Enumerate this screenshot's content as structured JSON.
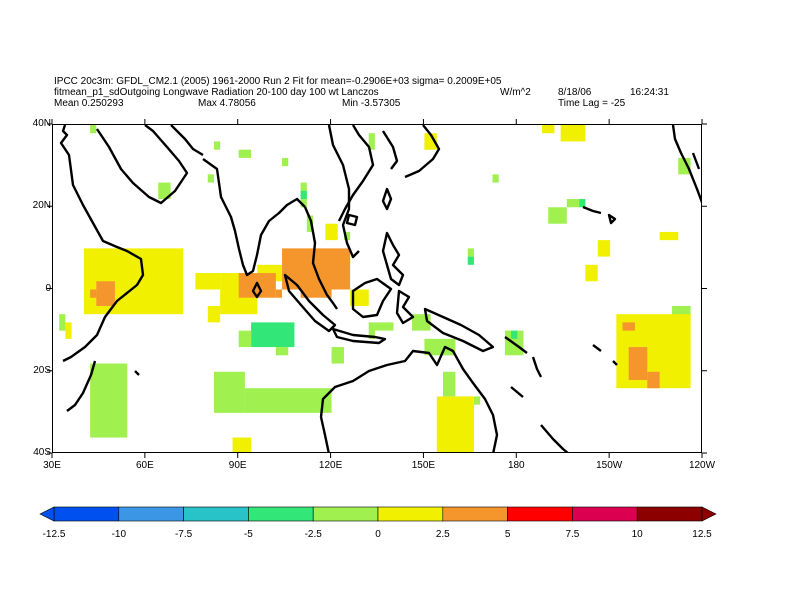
{
  "header": {
    "line1": "IPCC 20c3m: GFDL_CM2.1 (2005) 1961-2000 Run 2 Fit for mean=-0.2906E+03 sigma= 0.2009E+05",
    "line2": "fitmean_p1_sdOutgoing Longwave Radiation 20-100 day 100 wt Lanczos",
    "units": "W/m^2",
    "date": "8/18/06",
    "time": "16:24:31",
    "mean": "Mean 0.250293",
    "max": "Max 4.78056",
    "min": "Min -3.57305",
    "lag": "Time Lag = -25"
  },
  "map": {
    "lon_range": [
      30,
      240
    ],
    "lat_range": [
      -40,
      40
    ],
    "x_ticks": [
      "30E",
      "60E",
      "90E",
      "120E",
      "150E",
      "180",
      "150W",
      "120W"
    ],
    "y_ticks": [
      "40N",
      "20N",
      "0",
      "20S",
      "40S"
    ]
  },
  "colorbar": {
    "colors": [
      "#0050f0",
      "#3c96e6",
      "#28c3c8",
      "#32e678",
      "#a0f050",
      "#f0f000",
      "#f5962d",
      "#ff0000",
      "#dc0050",
      "#8c0000"
    ],
    "labels": [
      "-12.5",
      "-10",
      "-7.5",
      "-5",
      "-2.5",
      "0",
      "2.5",
      "5",
      "7.5",
      "10",
      "12.5"
    ]
  },
  "chart_data": {
    "type": "heatmap",
    "title": "fitmean_p1_sdOutgoing Longwave Radiation 20-100 day 100 wt Lanczos",
    "units": "W/m^2",
    "value_range": [
      -12.5,
      12.5
    ],
    "note": "cell value classes: -5 = [-5,-2.5), -2 = [-2.5,0), 0 = [0,2.5), 2 = [2.5,5)",
    "cells": [
      {
        "lon": [
          42,
          44
        ],
        "lat": [
          38,
          40
        ],
        "class": -2
      },
      {
        "lon": [
          80,
          82
        ],
        "lat": [
          26,
          28
        ],
        "class": -2
      },
      {
        "lon": [
          82,
          84
        ],
        "lat": [
          34,
          36
        ],
        "class": -2
      },
      {
        "lon": [
          90,
          94
        ],
        "lat": [
          32,
          34
        ],
        "class": -2
      },
      {
        "lon": [
          64,
          68
        ],
        "lat": [
          22,
          26
        ],
        "class": -2
      },
      {
        "lon": [
          104,
          106
        ],
        "lat": [
          30,
          32
        ],
        "class": -2
      },
      {
        "lon": [
          110,
          112
        ],
        "lat": [
          20,
          26
        ],
        "class": -2
      },
      {
        "lon": [
          110,
          112
        ],
        "lat": [
          22,
          24
        ],
        "class": -5
      },
      {
        "lon": [
          112,
          114
        ],
        "lat": [
          14,
          18
        ],
        "class": -2
      },
      {
        "lon": [
          132,
          134
        ],
        "lat": [
          34,
          38
        ],
        "class": -2
      },
      {
        "lon": [
          150,
          152
        ],
        "lat": [
          34,
          36
        ],
        "class": -2
      },
      {
        "lon": [
          172,
          174
        ],
        "lat": [
          26,
          28
        ],
        "class": -2
      },
      {
        "lon": [
          190,
          196
        ],
        "lat": [
          16,
          20
        ],
        "class": -2
      },
      {
        "lon": [
          196,
          200
        ],
        "lat": [
          20,
          22
        ],
        "class": -2
      },
      {
        "lon": [
          200,
          202
        ],
        "lat": [
          20,
          22
        ],
        "class": -5
      },
      {
        "lon": [
          232,
          236
        ],
        "lat": [
          28,
          32
        ],
        "class": -2
      },
      {
        "lon": [
          230,
          236
        ],
        "lat": [
          -8,
          -4
        ],
        "class": -2
      },
      {
        "lon": [
          164,
          166
        ],
        "lat": [
          6,
          8
        ],
        "class": -5
      },
      {
        "lon": [
          164,
          166
        ],
        "lat": [
          8,
          10
        ],
        "class": -2
      },
      {
        "lon": [
          124,
          126
        ],
        "lat": [
          12,
          14
        ],
        "class": -2
      },
      {
        "lon": [
          94,
          108
        ],
        "lat": [
          -14,
          -8
        ],
        "class": -5
      },
      {
        "lon": [
          90,
          94
        ],
        "lat": [
          -14,
          -10
        ],
        "class": -2
      },
      {
        "lon": [
          102,
          106
        ],
        "lat": [
          -16,
          -14
        ],
        "class": -2
      },
      {
        "lon": [
          132,
          134
        ],
        "lat": [
          -12,
          -8
        ],
        "class": -2
      },
      {
        "lon": [
          134,
          140
        ],
        "lat": [
          -10,
          -8
        ],
        "class": -2
      },
      {
        "lon": [
          146,
          152
        ],
        "lat": [
          -10,
          -6
        ],
        "class": -2
      },
      {
        "lon": [
          150,
          160
        ],
        "lat": [
          -16,
          -12
        ],
        "class": -2
      },
      {
        "lon": [
          176,
          182
        ],
        "lat": [
          -16,
          -10
        ],
        "class": -2
      },
      {
        "lon": [
          178,
          180
        ],
        "lat": [
          -12,
          -10
        ],
        "class": -5
      },
      {
        "lon": [
          42,
          54
        ],
        "lat": [
          -36,
          -18
        ],
        "class": -2
      },
      {
        "lon": [
          82,
          92
        ],
        "lat": [
          -30,
          -20
        ],
        "class": -2
      },
      {
        "lon": [
          92,
          120
        ],
        "lat": [
          -30,
          -24
        ],
        "class": -2
      },
      {
        "lon": [
          120,
          124
        ],
        "lat": [
          -18,
          -14
        ],
        "class": -2
      },
      {
        "lon": [
          156,
          160
        ],
        "lat": [
          -26,
          -20
        ],
        "class": -2
      },
      {
        "lon": [
          166,
          168
        ],
        "lat": [
          -28,
          -26
        ],
        "class": -2
      },
      {
        "lon": [
          32,
          34
        ],
        "lat": [
          -10,
          -6
        ],
        "class": -2
      },
      {
        "lon": [
          118,
          122
        ],
        "lat": [
          12,
          16
        ],
        "class": 0
      },
      {
        "lon": [
          150,
          154
        ],
        "lat": [
          34,
          38
        ],
        "class": 0
      },
      {
        "lon": [
          194,
          202
        ],
        "lat": [
          36,
          40
        ],
        "class": 0
      },
      {
        "lon": [
          226,
          232
        ],
        "lat": [
          12,
          14
        ],
        "class": 0
      },
      {
        "lon": [
          206,
          210
        ],
        "lat": [
          8,
          12
        ],
        "class": 0
      },
      {
        "lon": [
          202,
          206
        ],
        "lat": [
          2,
          6
        ],
        "class": 0
      },
      {
        "lon": [
          40,
          72
        ],
        "lat": [
          -6,
          10
        ],
        "class": 0
      },
      {
        "lon": [
          58,
          72
        ],
        "lat": [
          0,
          4
        ],
        "class": 0
      },
      {
        "lon": [
          76,
          84
        ],
        "lat": [
          0,
          4
        ],
        "class": 0
      },
      {
        "lon": [
          84,
          96
        ],
        "lat": [
          -6,
          4
        ],
        "class": 0
      },
      {
        "lon": [
          96,
          104
        ],
        "lat": [
          2,
          6
        ],
        "class": 0
      },
      {
        "lon": [
          80,
          84
        ],
        "lat": [
          -8,
          -4
        ],
        "class": 0
      },
      {
        "lon": [
          34,
          36
        ],
        "lat": [
          -12,
          -8
        ],
        "class": 0
      },
      {
        "lon": [
          124,
          126
        ],
        "lat": [
          6,
          8
        ],
        "class": 0
      },
      {
        "lon": [
          126,
          132
        ],
        "lat": [
          -4,
          0
        ],
        "class": 0
      },
      {
        "lon": [
          154,
          166
        ],
        "lat": [
          -40,
          -26
        ],
        "class": 0
      },
      {
        "lon": [
          88,
          94
        ],
        "lat": [
          -40,
          -36
        ],
        "class": 0
      },
      {
        "lon": [
          212,
          236
        ],
        "lat": [
          -24,
          -6
        ],
        "class": 0
      },
      {
        "lon": [
          188,
          192
        ],
        "lat": [
          38,
          40
        ],
        "class": 0
      },
      {
        "lon": [
          44,
          50
        ],
        "lat": [
          -4,
          2
        ],
        "class": 2
      },
      {
        "lon": [
          42,
          44
        ],
        "lat": [
          -2,
          0
        ],
        "class": 2
      },
      {
        "lon": [
          90,
          102
        ],
        "lat": [
          -2,
          4
        ],
        "class": 2
      },
      {
        "lon": [
          102,
          104
        ],
        "lat": [
          -2,
          0
        ],
        "class": 2
      },
      {
        "lon": [
          104,
          126
        ],
        "lat": [
          0,
          10
        ],
        "class": 2
      },
      {
        "lon": [
          110,
          120
        ],
        "lat": [
          -2,
          0
        ],
        "class": 2
      },
      {
        "lon": [
          214,
          218
        ],
        "lat": [
          -10,
          -8
        ],
        "class": 2
      },
      {
        "lon": [
          216,
          222
        ],
        "lat": [
          -22,
          -14
        ],
        "class": 2
      },
      {
        "lon": [
          222,
          226
        ],
        "lat": [
          -24,
          -20
        ],
        "class": 2
      }
    ]
  }
}
